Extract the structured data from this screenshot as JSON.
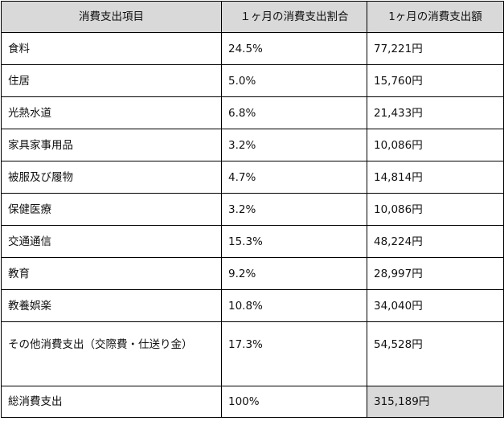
{
  "headers": [
    "消費支出項目",
    "１ヶ月の消費支出割合",
    "1ヶ月の消費支出額"
  ],
  "rows": [
    {
      "item": "食料",
      "ratio": "24.5%",
      "amount": "77,221円"
    },
    {
      "item": "住居",
      "ratio": "5.0%",
      "amount": "15,760円"
    },
    {
      "item": "光熱水道",
      "ratio": "6.8%",
      "amount": "21,433円"
    },
    {
      "item": "家具家事用品",
      "ratio": "3.2%",
      "amount": "10,086円"
    },
    {
      "item": "被服及び履物",
      "ratio": "4.7%",
      "amount": "14,814円"
    },
    {
      "item": "保健医療",
      "ratio": "3.2%",
      "amount": "10,086円"
    },
    {
      "item": "交通通信",
      "ratio": "15.3%",
      "amount": "48,224円"
    },
    {
      "item": "教育",
      "ratio": "9.2%",
      "amount": "28,997円"
    },
    {
      "item": "教養娯楽",
      "ratio": "10.8%",
      "amount": "34,040円"
    },
    {
      "item": "その他消費支出（交際費・仕送り金）",
      "ratio": "17.3%",
      "amount": "54,528円"
    }
  ],
  "total": {
    "item": "総消費支出",
    "ratio": "100%",
    "amount": "315,189円"
  }
}
